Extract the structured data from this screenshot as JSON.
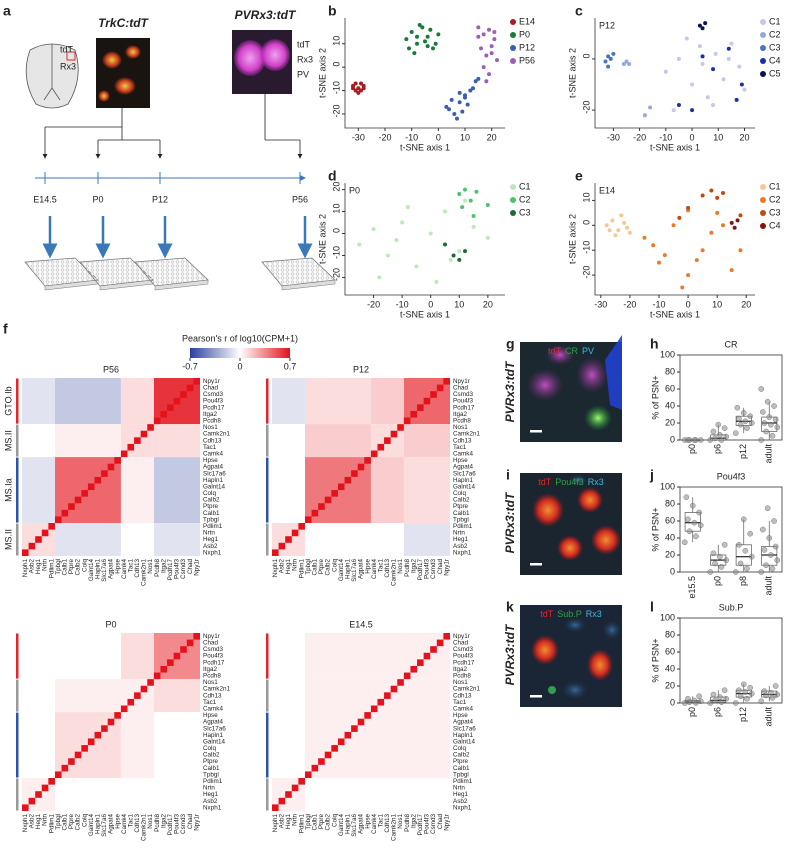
{
  "figure_a": {
    "label": "a",
    "left_title": "TrkC:tdT",
    "left_channels": [
      {
        "text": "tdT",
        "color": "#e3262a"
      },
      {
        "text": "Rx3",
        "color": "#2e9a3e"
      }
    ],
    "right_title": "PVRx3:tdT",
    "right_channels": [
      {
        "text": "tdT",
        "color": "#e3262a"
      },
      {
        "text": "Rx3",
        "color": "#2e9a3e"
      },
      {
        "text": "PV",
        "color": "#2a64b8"
      }
    ],
    "timepoints": [
      "E14.5",
      "P0",
      "P12",
      "P56"
    ]
  },
  "chart_data": [
    {
      "label": "b",
      "type": "scatter",
      "x_label": "t-SNE axis 1",
      "y_label": "t-SNE axis 2",
      "xlim": [
        -35,
        25
      ],
      "ylim": [
        -26,
        21
      ],
      "xticks": [
        -30,
        -20,
        -10,
        0,
        10,
        20
      ],
      "yticks": [
        -20,
        -10,
        0,
        10
      ],
      "series": [
        {
          "name": "E14",
          "color": "#a81c22",
          "x": [
            -32,
            -31,
            -30,
            -29,
            -28,
            -31,
            -30,
            -29,
            -32,
            -28
          ],
          "values": [
            -8,
            -10,
            -9,
            -7,
            -9,
            -7,
            -11,
            -10,
            -9,
            -8
          ]
        },
        {
          "name": "P0",
          "color": "#1b7a3a",
          "x": [
            -12,
            -10,
            -8,
            -6,
            -4,
            -2,
            0,
            -11,
            -7,
            -3,
            -9,
            -5,
            -1,
            -8,
            -4
          ],
          "values": [
            12,
            15,
            10,
            17,
            13,
            8,
            14,
            8,
            18,
            16,
            6,
            11,
            10,
            13,
            9
          ]
        },
        {
          "name": "P12",
          "color": "#3a5fb0",
          "x": [
            4,
            6,
            8,
            10,
            12,
            14,
            5,
            9,
            11,
            13,
            7,
            3,
            15,
            10,
            8
          ],
          "values": [
            -18,
            -20,
            -15,
            -13,
            -10,
            -6,
            -14,
            -19,
            -16,
            -9,
            -22,
            -17,
            -5,
            -12,
            -11
          ]
        },
        {
          "name": "P56",
          "color": "#9b5fb8",
          "x": [
            15,
            17,
            19,
            21,
            16,
            18,
            20,
            22,
            17,
            19,
            15,
            21,
            18,
            20
          ],
          "values": [
            17,
            14,
            16,
            12,
            8,
            5,
            9,
            3,
            0,
            -3,
            13,
            15,
            -6,
            6
          ]
        }
      ]
    },
    {
      "label": "c",
      "type": "scatter",
      "inset_title": "P12",
      "x_label": "t-SNE axis 1",
      "y_label": "t-SNE axis 2",
      "xlim": [
        -37,
        24
      ],
      "ylim": [
        -27,
        16
      ],
      "xticks": [
        -30,
        -20,
        -10,
        0,
        10,
        20
      ],
      "yticks": [
        -20,
        0
      ],
      "series": [
        {
          "name": "C1",
          "color": "#c5c8ee",
          "x": [
            -10,
            -5,
            0,
            3,
            6,
            9,
            12,
            15,
            18,
            20,
            -2,
            8,
            14,
            -7,
            4
          ],
          "values": [
            -5,
            0,
            -10,
            5,
            -15,
            2,
            -8,
            6,
            -3,
            -12,
            8,
            -18,
            0,
            -20,
            -2
          ]
        },
        {
          "name": "C2",
          "color": "#94a9dd",
          "x": [
            -26,
            -25,
            -24,
            -18,
            -16
          ],
          "values": [
            -2,
            -1,
            -2,
            -22,
            -19
          ]
        },
        {
          "name": "C3",
          "color": "#4676bd",
          "x": [
            -33,
            -32,
            -31,
            -30,
            -32
          ],
          "values": [
            -1,
            1,
            0,
            2,
            -3
          ]
        },
        {
          "name": "C4",
          "color": "#1c2fa8",
          "x": [
            0,
            4,
            8,
            14,
            17,
            19,
            -5
          ],
          "values": [
            -20,
            1,
            -4,
            4,
            -16,
            -10,
            -18
          ]
        },
        {
          "name": "C5",
          "color": "#0a1258",
          "x": [
            3,
            4,
            5
          ],
          "values": [
            13,
            12,
            14
          ]
        }
      ]
    },
    {
      "label": "d",
      "type": "scatter",
      "inset_title": "P0",
      "x_label": "t-SNE axis 1",
      "y_label": "t-SNE axis 2",
      "xlim": [
        -30,
        26
      ],
      "ylim": [
        -28,
        23
      ],
      "xticks": [
        -20,
        -10,
        0,
        10,
        20
      ],
      "yticks": [
        -20,
        -10,
        0,
        10,
        20
      ],
      "series": [
        {
          "name": "C1",
          "color": "#b9eab9",
          "x": [
            -25,
            -20,
            -15,
            -10,
            -5,
            0,
            5,
            10,
            15,
            20,
            -18,
            -8,
            2,
            12,
            -12,
            7
          ],
          "values": [
            -5,
            2,
            -10,
            5,
            -15,
            0,
            10,
            -8,
            3,
            -2,
            -20,
            12,
            -22,
            15,
            -3,
            -12
          ]
        },
        {
          "name": "C2",
          "color": "#4cc46c",
          "x": [
            10,
            12,
            14,
            16,
            11,
            15,
            20
          ],
          "values": [
            18,
            20,
            15,
            19,
            12,
            8,
            13
          ]
        },
        {
          "name": "C3",
          "color": "#1e6b33",
          "x": [
            5,
            8,
            10,
            12
          ],
          "values": [
            -5,
            -10,
            -12,
            -8
          ]
        }
      ]
    },
    {
      "label": "e",
      "type": "scatter",
      "inset_title": "E14",
      "x_label": "t-SNE axis 1",
      "y_label": "t-SNE axis 2",
      "xlim": [
        -32,
        23
      ],
      "ylim": [
        -28,
        17
      ],
      "xticks": [
        -30,
        -20,
        -10,
        0,
        10,
        20
      ],
      "yticks": [
        -20,
        -10,
        0,
        10
      ],
      "series": [
        {
          "name": "C1",
          "color": "#f6c896",
          "x": [
            -28,
            -26,
            -24,
            -22,
            -20,
            -25,
            -23,
            -21,
            -27
          ],
          "values": [
            0,
            2,
            -2,
            1,
            -3,
            -4,
            4,
            -1,
            -2
          ]
        },
        {
          "name": "C2",
          "color": "#ea7a2c",
          "x": [
            -15,
            -10,
            -5,
            0,
            5,
            10,
            15,
            -12,
            -2,
            8,
            3,
            -8,
            12,
            18,
            0
          ],
          "values": [
            -5,
            -15,
            0,
            -20,
            -10,
            5,
            -18,
            -8,
            -25,
            -3,
            -14,
            -12,
            0,
            -10,
            6
          ]
        },
        {
          "name": "C3",
          "color": "#c04a12",
          "x": [
            5,
            8,
            10,
            12,
            18,
            -3,
            0
          ],
          "values": [
            12,
            14,
            11,
            13,
            4,
            3,
            7
          ]
        },
        {
          "name": "C4",
          "color": "#8a1010",
          "x": [
            15,
            17,
            16
          ],
          "values": [
            1,
            2,
            -1
          ]
        }
      ]
    },
    {
      "label": "f",
      "type": "heatmap",
      "colorbar_title": "Pearson's r of log10(CPM+1)",
      "clim": [
        -0.7,
        0.7
      ],
      "cticks": [
        -0.7,
        0,
        0.7
      ],
      "colors": [
        "#2c3e9e",
        "#ffffff",
        "#e3121b"
      ],
      "genes": [
        "Npy1r",
        "Chad",
        "Csmd3",
        "Pou4f3",
        "Pcdh17",
        "Itga2",
        "Pcdh8",
        "Nos1",
        "Camk2n1",
        "Cdh13",
        "Tac1",
        "Camk4",
        "Hpse",
        "Agpat4",
        "Slc17a6",
        "Hapln1",
        "Galnt14",
        "Colq",
        "Calb2",
        "Ptpre",
        "Calb1",
        "Tpbgl",
        "Pdlim1",
        "Nrtn",
        "Heg1",
        "Asb2",
        "Nxph1"
      ],
      "groups": [
        {
          "label": "GTO.Ib",
          "color": "#e3262a",
          "count": 7
        },
        {
          "label": "MS.II",
          "color": "#9a9a9a",
          "count": 5
        },
        {
          "label": "MS.Ia",
          "color": "#2c55a8",
          "count": 10
        },
        {
          "label": "MS.II",
          "color": "#9a9a9a",
          "count": 5
        }
      ],
      "maps": [
        {
          "title": "P56",
          "diagonal": 1,
          "blocks": [
            [
              0.6,
              0.1,
              -0.2,
              -0.1
            ],
            [
              0.1,
              0.1,
              0.05,
              0
            ],
            [
              -0.2,
              0.05,
              0.45,
              -0.1
            ],
            [
              -0.1,
              0,
              -0.1,
              0.1
            ]
          ]
        },
        {
          "title": "P12",
          "diagonal": 1,
          "blocks": [
            [
              0.45,
              0.15,
              0.1,
              -0.1
            ],
            [
              0.15,
              0.1,
              0.15,
              0
            ],
            [
              0.1,
              0.15,
              0.4,
              0
            ],
            [
              -0.1,
              0,
              0,
              0.1
            ]
          ]
        },
        {
          "title": "P0",
          "diagonal": 1,
          "blocks": [
            [
              0.35,
              0.1,
              0,
              0
            ],
            [
              0.1,
              0.05,
              0.05,
              0
            ],
            [
              0,
              0.05,
              0.1,
              0
            ],
            [
              0,
              0,
              0,
              0.05
            ]
          ]
        },
        {
          "title": "E14.5",
          "diagonal": 1,
          "blocks": [
            [
              0.05,
              0.05,
              0.05,
              0
            ],
            [
              0.05,
              0.05,
              0.05,
              0
            ],
            [
              0.05,
              0.05,
              0.05,
              0
            ],
            [
              0,
              0,
              0,
              0.05
            ]
          ]
        }
      ]
    },
    {
      "label": "h",
      "type": "box",
      "title": "CR",
      "y_label": "% of PSN+",
      "color": "#888888",
      "categories": [
        "p0",
        "p6",
        "p12",
        "adult"
      ],
      "ylim": [
        0,
        100
      ],
      "yticks": [
        0,
        20,
        40,
        60,
        80,
        100
      ],
      "boxes": [
        {
          "whisker_low": 0,
          "q1": 0,
          "median": 0,
          "q3": 0,
          "whisker_high": 0,
          "points": [
            0,
            0,
            0,
            0,
            0,
            0
          ]
        },
        {
          "whisker_low": 0,
          "q1": 0,
          "median": 2,
          "q3": 6,
          "whisker_high": 18,
          "points": [
            0,
            0,
            2,
            4,
            6,
            10,
            14,
            18
          ]
        },
        {
          "whisker_low": 8,
          "q1": 17,
          "median": 22,
          "q3": 28,
          "whisker_high": 38,
          "points": [
            8,
            14,
            18,
            20,
            22,
            25,
            28,
            32,
            38
          ]
        },
        {
          "whisker_low": 0,
          "q1": 10,
          "median": 20,
          "q3": 27,
          "whisker_high": 45,
          "points": [
            0,
            5,
            10,
            15,
            18,
            20,
            24,
            27,
            33,
            40,
            45,
            60
          ]
        }
      ]
    },
    {
      "label": "j",
      "type": "box",
      "title": "Pou4f3",
      "y_label": "% of PSN+",
      "color": "#888888",
      "categories": [
        "e15.5",
        "p0",
        "p8",
        "adult"
      ],
      "ylim": [
        0,
        100
      ],
      "yticks": [
        0,
        20,
        40,
        60,
        80,
        100
      ],
      "boxes": [
        {
          "whisker_low": 35,
          "q1": 48,
          "median": 58,
          "q3": 70,
          "whisker_high": 88,
          "points": [
            35,
            42,
            48,
            55,
            58,
            62,
            70,
            78,
            88
          ]
        },
        {
          "whisker_low": 0,
          "q1": 8,
          "median": 14,
          "q3": 20,
          "whisker_high": 32,
          "points": [
            0,
            6,
            10,
            14,
            18,
            22,
            32
          ]
        },
        {
          "whisker_low": 0,
          "q1": 8,
          "median": 18,
          "q3": 32,
          "whisker_high": 62,
          "points": [
            0,
            4,
            10,
            18,
            25,
            32,
            45,
            62
          ]
        },
        {
          "whisker_low": 0,
          "q1": 8,
          "median": 20,
          "q3": 30,
          "whisker_high": 60,
          "points": [
            0,
            4,
            8,
            14,
            20,
            26,
            30,
            40,
            50,
            60,
            75
          ]
        }
      ]
    },
    {
      "label": "l",
      "type": "box",
      "title": "Sub.P",
      "y_label": "% of PSN+",
      "color": "#888888",
      "categories": [
        "p0",
        "p6",
        "p12",
        "adult"
      ],
      "ylim": [
        0,
        100
      ],
      "yticks": [
        0,
        20,
        40,
        60,
        80,
        100
      ],
      "boxes": [
        {
          "whisker_low": 0,
          "q1": 0,
          "median": 1,
          "q3": 3,
          "whisker_high": 8,
          "points": [
            0,
            0,
            1,
            2,
            3,
            5,
            8
          ]
        },
        {
          "whisker_low": 0,
          "q1": 1,
          "median": 3,
          "q3": 7,
          "whisker_high": 15,
          "points": [
            0,
            1,
            3,
            5,
            7,
            10,
            15
          ]
        },
        {
          "whisker_low": 0,
          "q1": 7,
          "median": 11,
          "q3": 15,
          "whisker_high": 22,
          "points": [
            0,
            5,
            8,
            11,
            13,
            15,
            18,
            22
          ]
        },
        {
          "whisker_low": 2,
          "q1": 7,
          "median": 10,
          "q3": 14,
          "whisker_high": 20,
          "points": [
            2,
            6,
            9,
            10,
            12,
            14,
            20
          ]
        }
      ]
    }
  ],
  "micrographs": [
    {
      "label": "g",
      "genotype": "PVRx3:tdT",
      "channels": [
        {
          "text": "tdT",
          "color": "#e3262a"
        },
        {
          "text": "CR",
          "color": "#2ea043"
        },
        {
          "text": "PV",
          "color": "#3cb8e0"
        }
      ]
    },
    {
      "label": "i",
      "genotype": "PVRx3:tdT",
      "channels": [
        {
          "text": "tdT",
          "color": "#e3262a"
        },
        {
          "text": "Pou4f3",
          "color": "#2ea043"
        },
        {
          "text": "Rx3",
          "color": "#3cb8e0"
        }
      ]
    },
    {
      "label": "k",
      "genotype": "PVRx3:tdT",
      "channels": [
        {
          "text": "tdT",
          "color": "#e3262a"
        },
        {
          "text": "Sub.P",
          "color": "#2ea043"
        },
        {
          "text": "Rx3",
          "color": "#3cb8e0"
        }
      ]
    }
  ]
}
